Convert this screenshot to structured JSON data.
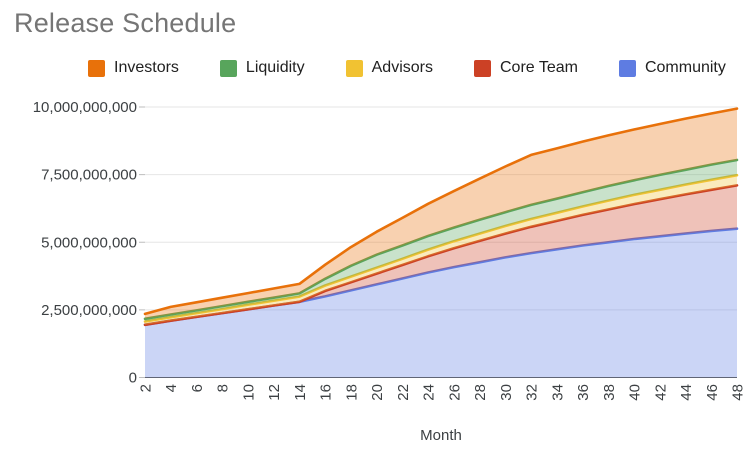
{
  "title": "Release Schedule",
  "legend": [
    {
      "label": "Investors",
      "color": "#e8710a"
    },
    {
      "label": "Liquidity",
      "color": "#58a55c"
    },
    {
      "label": "Advisors",
      "color": "#f1c232"
    },
    {
      "label": "Core Team",
      "color": "#cc4125"
    },
    {
      "label": "Community",
      "color": "#5e7ce2"
    }
  ],
  "chart_data": {
    "type": "area",
    "stacked": true,
    "title": "Release Schedule",
    "xlabel": "Month",
    "ylabel": "",
    "unit": "tokens",
    "value_scale": 1000000000,
    "ylim": [
      0,
      10000000000
    ],
    "grid": true,
    "legend_position": "top",
    "x": [
      2,
      4,
      6,
      8,
      10,
      12,
      14,
      16,
      18,
      20,
      22,
      24,
      26,
      28,
      30,
      32,
      34,
      36,
      38,
      40,
      42,
      44,
      46,
      48
    ],
    "x_tick_labels": [
      "2",
      "4",
      "6",
      "8",
      "10",
      "12",
      "14",
      "16",
      "18",
      "20",
      "22",
      "24",
      "26",
      "28",
      "30",
      "32",
      "34",
      "36",
      "38",
      "40",
      "42",
      "44",
      "46",
      "48"
    ],
    "y_ticks": [
      {
        "value": 0,
        "label": "0"
      },
      {
        "value": 2500000000,
        "label": "2,500,000,000"
      },
      {
        "value": 5000000000,
        "label": "5,000,000,000"
      },
      {
        "value": 7500000000,
        "label": "7,500,000,000"
      },
      {
        "value": 10000000000,
        "label": "10,000,000,000"
      }
    ],
    "series": [
      {
        "name": "Community",
        "color": "#5e7ce2",
        "fill": "rgba(94,124,226,0.32)",
        "values_billions": [
          1.95,
          2.1,
          2.24,
          2.38,
          2.52,
          2.66,
          2.8,
          3.0,
          3.22,
          3.44,
          3.66,
          3.88,
          4.08,
          4.26,
          4.44,
          4.6,
          4.74,
          4.88,
          5.0,
          5.12,
          5.22,
          5.32,
          5.42,
          5.5
        ]
      },
      {
        "name": "Core Team",
        "color": "#cc4125",
        "fill": "rgba(204,65,37,0.32)",
        "values_billions": [
          0,
          0,
          0,
          0,
          0,
          0,
          0,
          0.2,
          0.3,
          0.4,
          0.5,
          0.6,
          0.7,
          0.79,
          0.88,
          0.97,
          1.05,
          1.13,
          1.21,
          1.29,
          1.37,
          1.45,
          1.52,
          1.6
        ]
      },
      {
        "name": "Advisors",
        "color": "#f1c232",
        "fill": "rgba(241,194,50,0.32)",
        "values_billions": [
          0.12,
          0.13,
          0.14,
          0.15,
          0.17,
          0.18,
          0.19,
          0.2,
          0.21,
          0.22,
          0.23,
          0.25,
          0.26,
          0.27,
          0.28,
          0.29,
          0.3,
          0.31,
          0.33,
          0.34,
          0.35,
          0.36,
          0.37,
          0.38
        ]
      },
      {
        "name": "Liquidity",
        "color": "#58a55c",
        "fill": "rgba(88,165,92,0.32)",
        "values_billions": [
          0.1,
          0.1,
          0.1,
          0.11,
          0.11,
          0.11,
          0.12,
          0.25,
          0.4,
          0.48,
          0.49,
          0.5,
          0.5,
          0.51,
          0.51,
          0.52,
          0.52,
          0.53,
          0.54,
          0.54,
          0.55,
          0.55,
          0.56,
          0.56
        ]
      },
      {
        "name": "Investors",
        "color": "#e8710a",
        "fill": "rgba(232,113,10,0.32)",
        "values_billions": [
          0.18,
          0.28,
          0.3,
          0.31,
          0.32,
          0.34,
          0.35,
          0.52,
          0.69,
          0.85,
          1.02,
          1.19,
          1.35,
          1.52,
          1.69,
          1.85,
          1.86,
          1.87,
          1.87,
          1.88,
          1.88,
          1.89,
          1.89,
          1.9
        ]
      }
    ]
  }
}
